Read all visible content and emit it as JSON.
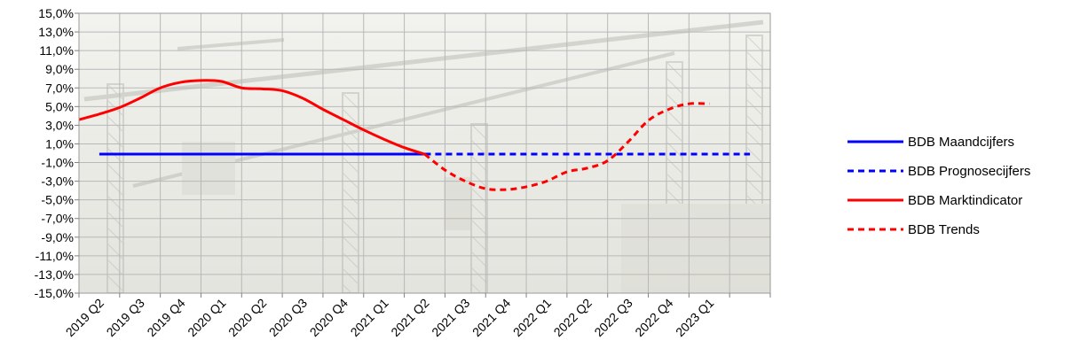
{
  "chart_data": {
    "type": "line",
    "title": "",
    "xlabel": "",
    "ylabel": "",
    "categories": [
      "2019 Q2",
      "2019 Q3",
      "2019 Q4",
      "2020 Q1",
      "2020 Q2",
      "2020 Q3",
      "2020 Q4",
      "2021 Q1",
      "2021 Q2",
      "2021 Q3",
      "2021 Q4",
      "2022 Q1",
      "2022 Q2",
      "2022 Q3",
      "2022 Q4",
      "2023 Q1"
    ],
    "extra_category_slot": true,
    "y_ticks": [
      "15,0%",
      "13,0%",
      "11,0%",
      "9,0%",
      "7,0%",
      "5,0%",
      "3,0%",
      "1,0%",
      "-1,0%",
      "-3,0%",
      "-5,0%",
      "-7,0%",
      "-9,0%",
      "-11,0%",
      "-13,0%",
      "-15,0%"
    ],
    "ylim": [
      -15,
      15
    ],
    "grid": true,
    "background": "construction-crane photo (faded)",
    "legend_position": "right",
    "series": [
      {
        "name": "BDB Maandcijfers",
        "color": "#0000ff",
        "style": "solid",
        "x": [
          0,
          8.0
        ],
        "values": [
          -0.1,
          -0.1
        ]
      },
      {
        "name": "BDB Prognosecijfers",
        "color": "#0000ff",
        "style": "dashed",
        "x": [
          8.0,
          16.0
        ],
        "values": [
          -0.1,
          -0.1
        ]
      },
      {
        "name": "BDB Marktindicator",
        "color": "#ff0000",
        "style": "solid",
        "x": [
          -0.5,
          0,
          0.5,
          1.0,
          1.5,
          2.0,
          2.5,
          3.0,
          3.5,
          4.0,
          4.5,
          5.0,
          5.5,
          6.0,
          6.5,
          7.0,
          7.5,
          8.0
        ],
        "values": [
          3.6,
          4.2,
          4.9,
          5.9,
          7.0,
          7.6,
          7.8,
          7.7,
          7.0,
          6.9,
          6.7,
          5.9,
          4.7,
          3.6,
          2.5,
          1.5,
          0.6,
          -0.1
        ]
      },
      {
        "name": "BDB Trends",
        "color": "#ff0000",
        "style": "dashed",
        "x": [
          8.0,
          8.5,
          9.0,
          9.5,
          10.0,
          10.5,
          11.0,
          11.5,
          12.0,
          12.5,
          13.0,
          13.5,
          14.0,
          14.5,
          15.0
        ],
        "values": [
          -0.1,
          -1.8,
          -3.0,
          -3.8,
          -3.9,
          -3.6,
          -3.0,
          -2.0,
          -1.6,
          -0.8,
          1.2,
          3.5,
          4.7,
          5.3,
          5.3
        ]
      }
    ]
  }
}
